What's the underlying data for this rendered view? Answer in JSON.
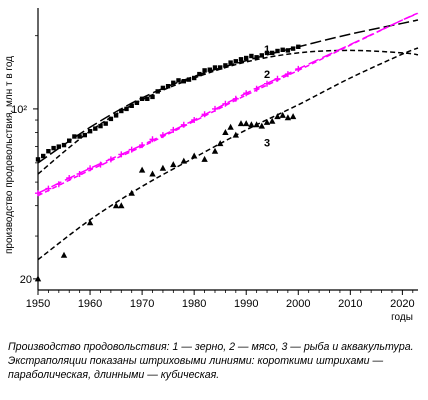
{
  "chart_data": {
    "type": "line",
    "title": "",
    "ylabel": "производство продовольствия, млн т в год",
    "xlabel": "годы",
    "y_scale": "log",
    "xlim": [
      1950,
      2023
    ],
    "ylim": [
      18,
      260
    ],
    "x_ticks": [
      1950,
      1960,
      1970,
      1980,
      1990,
      2000,
      2010,
      2020
    ],
    "y_ticks": [
      {
        "value": 20,
        "label": "20"
      },
      {
        "value": 100,
        "label": "10²"
      }
    ],
    "grid": false,
    "legend": "none",
    "colors": {
      "grain": "#000000",
      "meat": "#ff00ff",
      "fish": "#000000"
    },
    "series": [
      {
        "name": "1",
        "marker": "square",
        "color": "#000000",
        "x": [
          1950,
          1951,
          1952,
          1953,
          1954,
          1955,
          1956,
          1957,
          1958,
          1959,
          1960,
          1961,
          1962,
          1963,
          1964,
          1965,
          1966,
          1967,
          1968,
          1969,
          1970,
          1971,
          1972,
          1973,
          1974,
          1975,
          1976,
          1977,
          1978,
          1979,
          1980,
          1981,
          1982,
          1983,
          1984,
          1985,
          1986,
          1987,
          1988,
          1989,
          1990,
          1991,
          1992,
          1993,
          1994,
          1995,
          1996,
          1997,
          1998,
          1999,
          2000
        ],
        "values": [
          62,
          64,
          67,
          69,
          70,
          71,
          74,
          77,
          77,
          78,
          81,
          83,
          85,
          87,
          91,
          94,
          98,
          100,
          103,
          106,
          110,
          110,
          112,
          118,
          122,
          124,
          128,
          131,
          130,
          132,
          134,
          139,
          144,
          145,
          148,
          148,
          151,
          155,
          157,
          160,
          162,
          165,
          163,
          166,
          170,
          170,
          173,
          175,
          174,
          177,
          180
        ],
        "fit_parabolic": [
          [
            1950,
            54
          ],
          [
            1960,
            81
          ],
          [
            1970,
            109
          ],
          [
            1980,
            134
          ],
          [
            1990,
            156
          ],
          [
            2000,
            170
          ],
          [
            2010,
            174
          ],
          [
            2020,
            170
          ],
          [
            2023,
            167
          ]
        ],
        "fit_cubic": [
          [
            1950,
            60
          ],
          [
            1960,
            84
          ],
          [
            1970,
            111
          ],
          [
            1980,
            136
          ],
          [
            1990,
            158
          ],
          [
            2000,
            180
          ],
          [
            2010,
            203
          ],
          [
            2020,
            225
          ],
          [
            2023,
            232
          ]
        ]
      },
      {
        "name": "2",
        "marker": "plus",
        "color": "#ff00ff",
        "x": [
          1950,
          1952,
          1954,
          1956,
          1958,
          1960,
          1962,
          1964,
          1966,
          1968,
          1970,
          1972,
          1974,
          1976,
          1978,
          1980,
          1982,
          1984,
          1986,
          1988,
          1990,
          1992,
          1994,
          1996,
          1998,
          2000
        ],
        "values": [
          45,
          47,
          49,
          52,
          54,
          57,
          59,
          62,
          65,
          68,
          71,
          75,
          78,
          82,
          86,
          90,
          95,
          100,
          105,
          110,
          116,
          121,
          127,
          133,
          139,
          146
        ],
        "fit_parabolic": [
          [
            1950,
            44
          ],
          [
            1960,
            56
          ],
          [
            1970,
            70
          ],
          [
            1980,
            89
          ],
          [
            1990,
            114
          ],
          [
            2000,
            144
          ],
          [
            2010,
            183
          ],
          [
            2020,
            232
          ],
          [
            2023,
            248
          ]
        ],
        "fit_cubic": [
          [
            1950,
            45
          ],
          [
            1960,
            57
          ],
          [
            1970,
            71
          ],
          [
            1980,
            90
          ],
          [
            1990,
            116
          ],
          [
            2000,
            146
          ],
          [
            2010,
            184
          ],
          [
            2020,
            232
          ],
          [
            2023,
            247
          ]
        ]
      },
      {
        "name": "3",
        "marker": "triangle",
        "color": "#000000",
        "x": [
          1950,
          1955,
          1960,
          1965,
          1966,
          1968,
          1970,
          1972,
          1974,
          1976,
          1978,
          1980,
          1982,
          1984,
          1985,
          1986,
          1987,
          1988,
          1989,
          1990,
          1991,
          1992,
          1993,
          1994,
          1995,
          1996,
          1997,
          1998,
          1999
        ],
        "values": [
          20,
          25,
          34,
          40,
          40,
          45,
          56,
          54,
          57,
          59,
          61,
          64,
          62,
          67,
          72,
          80,
          84,
          78,
          87,
          87,
          86,
          86,
          85,
          88,
          89,
          93,
          94,
          92,
          93
        ],
        "fit_parabolic": [
          [
            1950,
            24
          ],
          [
            1960,
            35
          ],
          [
            1970,
            48
          ],
          [
            1980,
            63
          ],
          [
            1990,
            82
          ],
          [
            2000,
            104
          ],
          [
            2010,
            134
          ],
          [
            2020,
            168
          ],
          [
            2023,
            178
          ]
        ]
      }
    ],
    "curve_labels": [
      {
        "text": "1",
        "x": 1994,
        "y": 170
      },
      {
        "text": "2",
        "x": 1994,
        "y": 134
      },
      {
        "text": "3",
        "x": 1994,
        "y": 70
      }
    ]
  },
  "caption": "Производство продовольствия: 1 — зерно, 2 — мясо, 3 — рыба и аквакультура. Экстраполяции показаны штриховыми линиями: короткими штрихами — параболическая, длинными — кубическая."
}
